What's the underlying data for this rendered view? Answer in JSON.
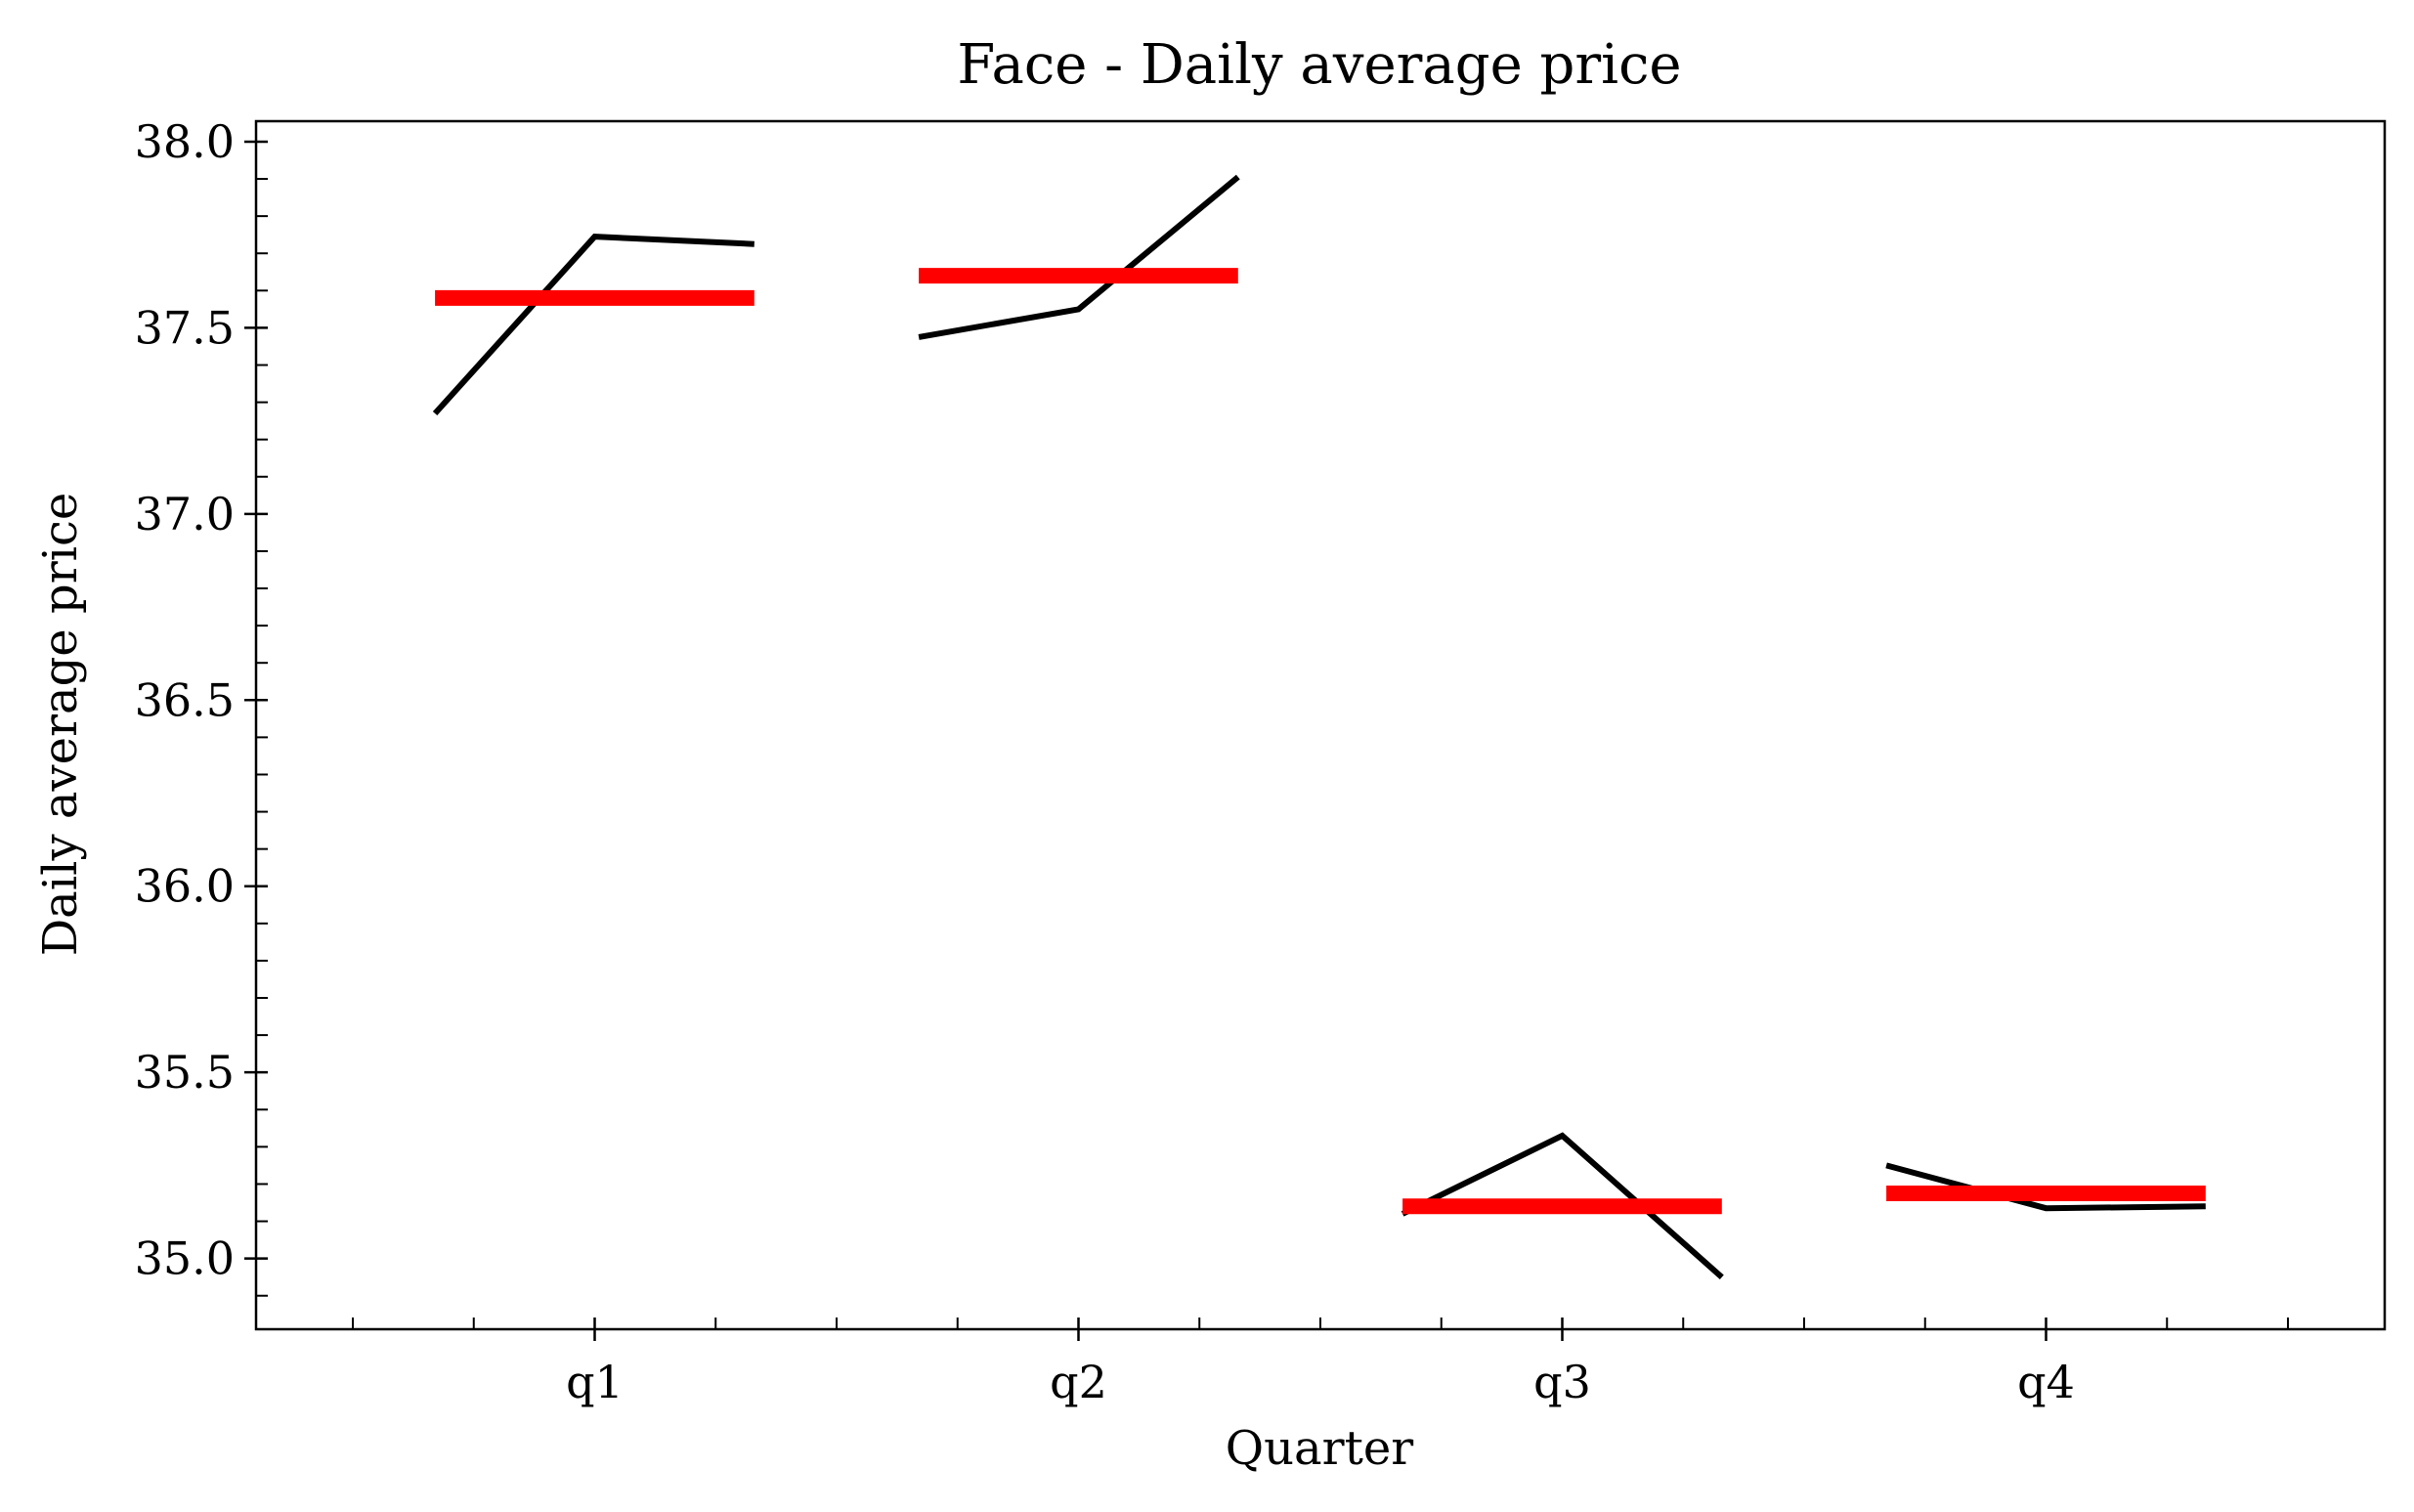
{
  "chart_data": {
    "type": "line",
    "title": "Face - Daily average price",
    "xlabel": "Quarter",
    "ylabel": "Daily average price",
    "categories": [
      "q1",
      "q2",
      "q3",
      "q4"
    ],
    "ylim": [
      34.81,
      38.055
    ],
    "yticks": [
      35.0,
      35.5,
      36.0,
      36.5,
      37.0,
      37.5,
      38.0
    ],
    "ytick_labels": [
      "35.0",
      "35.5",
      "36.0",
      "36.5",
      "37.0",
      "37.5",
      "38.0"
    ],
    "grid": false,
    "series": [
      {
        "color": "#000000",
        "segments": [
          {
            "category": "q1",
            "offsets": [
              -0.33,
              0.0,
              0.33
            ],
            "values": [
              37.27,
              37.745,
              37.725
            ]
          },
          {
            "category": "q2",
            "offsets": [
              -0.33,
              0.0,
              0.33
            ],
            "values": [
              37.475,
              37.55,
              37.905
            ]
          },
          {
            "category": "q3",
            "offsets": [
              -0.33,
              0.0,
              0.33
            ],
            "values": [
              35.12,
              35.33,
              34.95
            ]
          },
          {
            "category": "q4",
            "offsets": [
              -0.33,
              0.0,
              0.33
            ],
            "values": [
              35.25,
              35.135,
              35.14
            ]
          }
        ]
      },
      {
        "color": "#ff0000",
        "segments": [
          {
            "category": "q1",
            "offsets": [
              -0.33,
              0.33
            ],
            "values": [
              37.58,
              37.58
            ]
          },
          {
            "category": "q2",
            "offsets": [
              -0.33,
              0.33
            ],
            "values": [
              37.64,
              37.64
            ]
          },
          {
            "category": "q3",
            "offsets": [
              -0.33,
              0.33
            ],
            "values": [
              35.14,
              35.14
            ]
          },
          {
            "category": "q4",
            "offsets": [
              -0.33,
              0.33
            ],
            "values": [
              35.175,
              35.175
            ]
          }
        ]
      }
    ]
  }
}
